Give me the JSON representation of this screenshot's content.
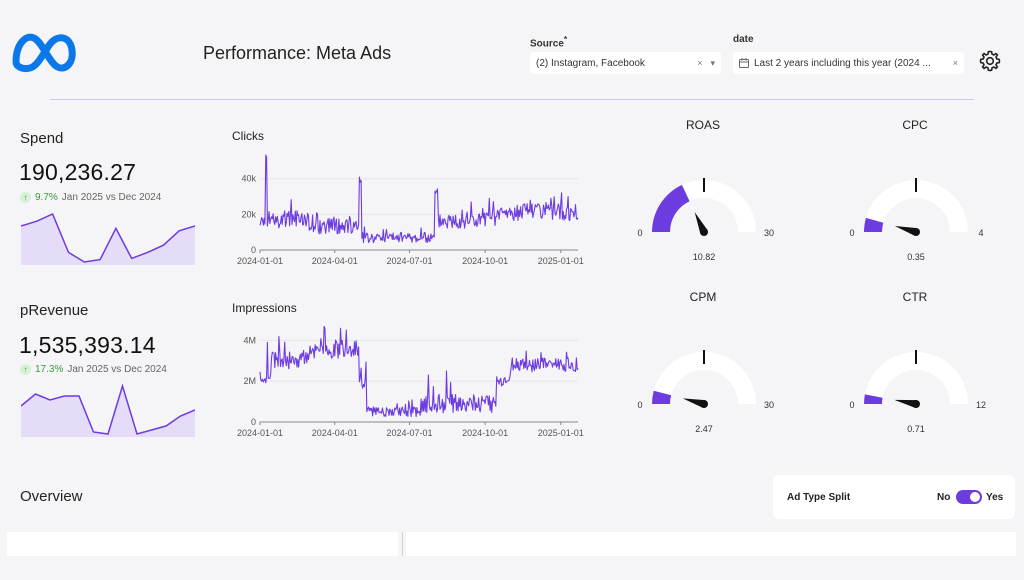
{
  "header": {
    "title": "Performance: Meta Ads",
    "source_label": "Source",
    "source_required": "*",
    "source_value": "(2) Instagram, Facebook",
    "source_clear": "×",
    "source_dropdown": "▾",
    "date_label": "date",
    "date_value": "Last 2 years including this year (2024 ...",
    "date_clear": "×"
  },
  "kpis": [
    {
      "title": "Spend",
      "value": "190,236.27",
      "delta_pct": "9.7%",
      "delta_text": "Jan 2025 vs Dec 2024"
    },
    {
      "title": "pRevenue",
      "value": "1,535,393.14",
      "delta_pct": "17.3%",
      "delta_text": "Jan 2025 vs Dec 2024"
    }
  ],
  "overview": {
    "title": "Overview",
    "toggle_label": "Ad Type Split",
    "toggle_off": "No",
    "toggle_on": "Yes",
    "toggle_state": true
  },
  "colors": {
    "accent": "#6c3ce1",
    "area_fill": "#e4dcf8",
    "gauge_track": "#ffffff",
    "positive": "#3a9a3a",
    "meta_blue": "#0a78e8"
  },
  "chart_data": [
    {
      "type": "area",
      "title": "",
      "series": [
        {
          "values": [
            30,
            34,
            40,
            8,
            0,
            2,
            28,
            3,
            8,
            14,
            26,
            30
          ]
        }
      ]
    },
    {
      "type": "area",
      "title": "",
      "series": [
        {
          "values": [
            28,
            40,
            34,
            38,
            38,
            2,
            0,
            48,
            0,
            4,
            8,
            18,
            24
          ]
        }
      ]
    },
    {
      "type": "line",
      "title": "Clicks",
      "ylim": [
        0,
        55000
      ],
      "yticks": [
        0,
        20000,
        40000
      ],
      "ytick_labels": [
        "0",
        "20k",
        "40k"
      ],
      "xticks": [
        "2024-01-01",
        "2024-04-01",
        "2024-07-01",
        "2024-10-01",
        "2025-01-01"
      ],
      "x_start": "2024-01-01",
      "x_end": "2025-01-22",
      "segments": [
        {
          "from": "2024-01-01",
          "to": "2024-01-08",
          "level": 16000,
          "amp": 3500
        },
        {
          "from": "2024-01-08",
          "to": "2024-01-10",
          "level": 52000,
          "amp": 1500
        },
        {
          "from": "2024-01-10",
          "to": "2024-03-01",
          "level": 17000,
          "amp": 5000
        },
        {
          "from": "2024-03-01",
          "to": "2024-05-01",
          "level": 14000,
          "amp": 5000
        },
        {
          "from": "2024-05-01",
          "to": "2024-05-04",
          "level": 38000,
          "amp": 3000
        },
        {
          "from": "2024-05-04",
          "to": "2024-08-01",
          "level": 7000,
          "amp": 3000
        },
        {
          "from": "2024-08-01",
          "to": "2024-08-05",
          "level": 32000,
          "amp": 3000
        },
        {
          "from": "2024-08-05",
          "to": "2024-10-15",
          "level": 17000,
          "amp": 5000
        },
        {
          "from": "2024-10-15",
          "to": "2025-01-22",
          "level": 21000,
          "amp": 5000
        }
      ],
      "peaks": [
        {
          "date": "2024-01-09",
          "value": 52000
        },
        {
          "date": "2024-05-02",
          "value": 38000
        },
        {
          "date": "2024-08-02",
          "value": 32000
        },
        {
          "date": "2024-09-14",
          "value": 27000
        },
        {
          "date": "2024-12-20",
          "value": 29000
        },
        {
          "date": "2025-01-10",
          "value": 30000
        }
      ]
    },
    {
      "type": "line",
      "title": "Impressions",
      "ylim": [
        0,
        4800000
      ],
      "yticks": [
        0,
        2000000,
        4000000
      ],
      "ytick_labels": [
        "0",
        "2M",
        "4M"
      ],
      "xticks": [
        "2024-01-01",
        "2024-04-01",
        "2024-07-01",
        "2024-10-01",
        "2025-01-01"
      ],
      "x_start": "2024-01-01",
      "x_end": "2025-01-22",
      "segments": [
        {
          "from": "2024-01-01",
          "to": "2024-01-15",
          "level": 2200000,
          "amp": 300000
        },
        {
          "from": "2024-01-15",
          "to": "2024-03-01",
          "level": 3100000,
          "amp": 500000
        },
        {
          "from": "2024-03-01",
          "to": "2024-05-01",
          "level": 3600000,
          "amp": 500000
        },
        {
          "from": "2024-05-01",
          "to": "2024-05-10",
          "level": 2000000,
          "amp": 400000
        },
        {
          "from": "2024-05-10",
          "to": "2024-07-15",
          "level": 500000,
          "amp": 250000
        },
        {
          "from": "2024-07-15",
          "to": "2024-10-15",
          "level": 900000,
          "amp": 450000
        },
        {
          "from": "2024-10-15",
          "to": "2024-11-01",
          "level": 2000000,
          "amp": 300000
        },
        {
          "from": "2024-11-01",
          "to": "2025-01-22",
          "level": 2800000,
          "amp": 350000
        }
      ],
      "peaks": [
        {
          "date": "2024-01-10",
          "value": 3900000
        },
        {
          "date": "2024-03-20",
          "value": 4600000
        },
        {
          "date": "2024-04-15",
          "value": 4500000
        },
        {
          "date": "2024-07-24",
          "value": 2300000
        },
        {
          "date": "2024-08-15",
          "value": 2500000
        },
        {
          "date": "2024-12-08",
          "value": 3400000
        }
      ]
    },
    {
      "type": "gauge",
      "title": "ROAS",
      "min": 0,
      "max": 30,
      "min_label": "0",
      "max_label": "30",
      "value": 10.82,
      "value_label": "10.82"
    },
    {
      "type": "gauge",
      "title": "CPC",
      "min": 0,
      "max": 4,
      "min_label": "0",
      "max_label": "4",
      "value": 0.35,
      "value_label": "0.35"
    },
    {
      "type": "gauge",
      "title": "CPM",
      "min": 0,
      "max": 30,
      "min_label": "0",
      "max_label": "30",
      "value": 2.47,
      "value_label": "2.47"
    },
    {
      "type": "gauge",
      "title": "CTR",
      "min": 0,
      "max": 12,
      "min_label": "0",
      "max_label": "12",
      "value": 0.71,
      "value_label": "0.71"
    }
  ]
}
